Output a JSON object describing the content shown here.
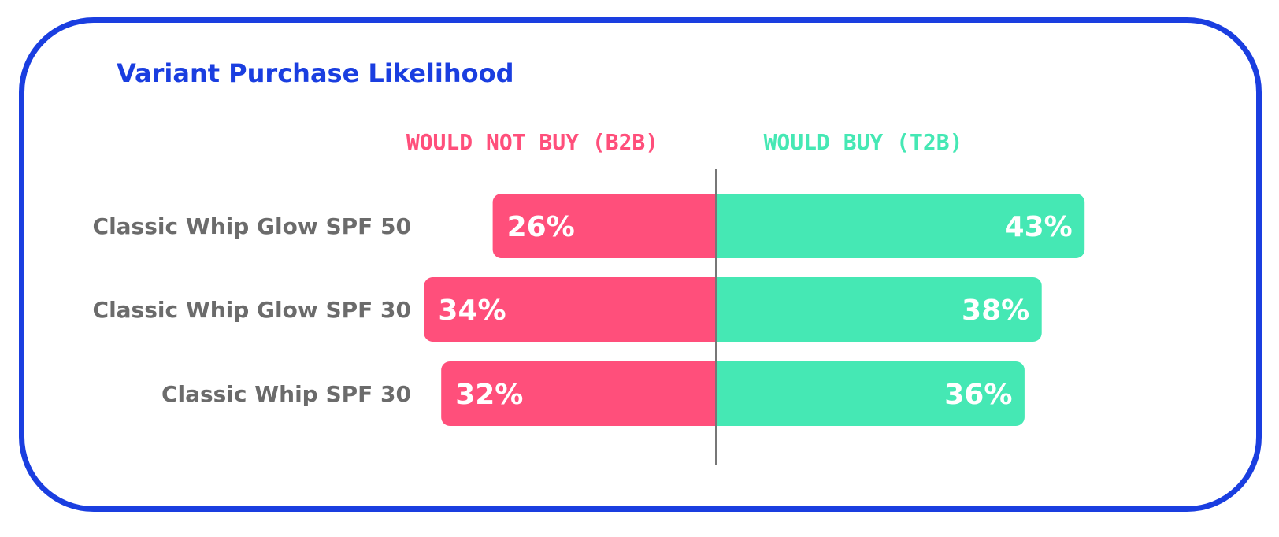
{
  "chart_data": {
    "type": "bar",
    "title": "Variant Purchase Likelihood",
    "categories": [
      "Classic Whip Glow SPF 50",
      "Classic Whip Glow SPF 30",
      "Classic Whip SPF 30"
    ],
    "series": [
      {
        "name": "WOULD NOT BUY (B2B)",
        "values": [
          26,
          34,
          32
        ],
        "labels": [
          "26%",
          "34%",
          "32%"
        ]
      },
      {
        "name": "WOULD BUY (T2B)",
        "values": [
          43,
          38,
          36
        ],
        "labels": [
          "43%",
          "38%",
          "36%"
        ]
      }
    ],
    "xlabel": "",
    "ylabel": "",
    "grid": false,
    "legend": "top"
  },
  "colors": {
    "card_border": "#1a3ee0",
    "title": "#1a3ee0",
    "negative": "#ff4f7b",
    "positive": "#45e8b4",
    "category_text": "#6b6b6b",
    "value_text": "#ffffff",
    "divider": "#777777"
  }
}
